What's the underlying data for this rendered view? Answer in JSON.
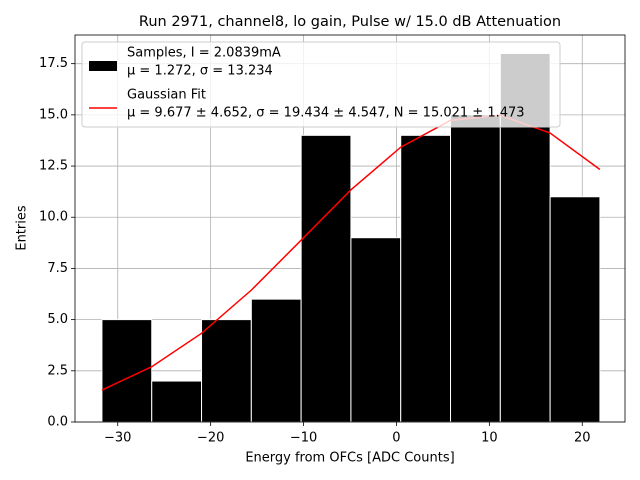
{
  "chart_data": {
    "type": "histogram",
    "title": "Run 2971, channel8, lo gain, Pulse w/ 15.0 dB Attenuation",
    "x_label": "Energy from OFCs [ADC Counts]",
    "y_label": "Entries",
    "xlim": [
      -34.6,
      24.6
    ],
    "ylim": [
      0,
      18.9
    ],
    "xticks": [
      {
        "value": -30,
        "label": "−30"
      },
      {
        "value": -20,
        "label": "−20"
      },
      {
        "value": -10,
        "label": "−10"
      },
      0,
      10,
      20
    ],
    "yticks": [
      {
        "value": 0,
        "label": "0.0"
      },
      2.5,
      {
        "value": 5,
        "label": "5.0"
      },
      7.5,
      {
        "value": 10,
        "label": "10.0"
      },
      12.5,
      {
        "value": 15,
        "label": "15.0"
      },
      17.5
    ],
    "grid": true,
    "legend": "upper left",
    "series": [
      {
        "type": "histogram",
        "name_lines": [
          "Samples, I = 2.0839mA",
          "μ = 1.272, σ = 13.234"
        ],
        "color": "#000000",
        "bins": [
          -31.7,
          -26.34,
          -20.98,
          -15.62,
          -10.26,
          -4.9,
          0.46,
          5.82,
          11.18,
          16.54,
          21.9
        ],
        "values": [
          5,
          2,
          5,
          6,
          14,
          9,
          14,
          15,
          18,
          11
        ]
      },
      {
        "type": "line",
        "name_lines": [
          "Gaussian Fit",
          "μ = 9.677 ± 4.652, σ = 19.434 ± 4.547, N = 15.021 ± 1.473"
        ],
        "color": "#ff0000",
        "x": [
          -31.7,
          -26.34,
          -20.98,
          -15.62,
          -10.26,
          -4.9,
          0.46,
          5.82,
          11.18,
          16.54,
          21.9
        ],
        "values": [
          1.56,
          2.7,
          4.33,
          6.44,
          8.88,
          11.34,
          13.42,
          14.73,
          14.98,
          14.11,
          12.33
        ]
      }
    ]
  }
}
